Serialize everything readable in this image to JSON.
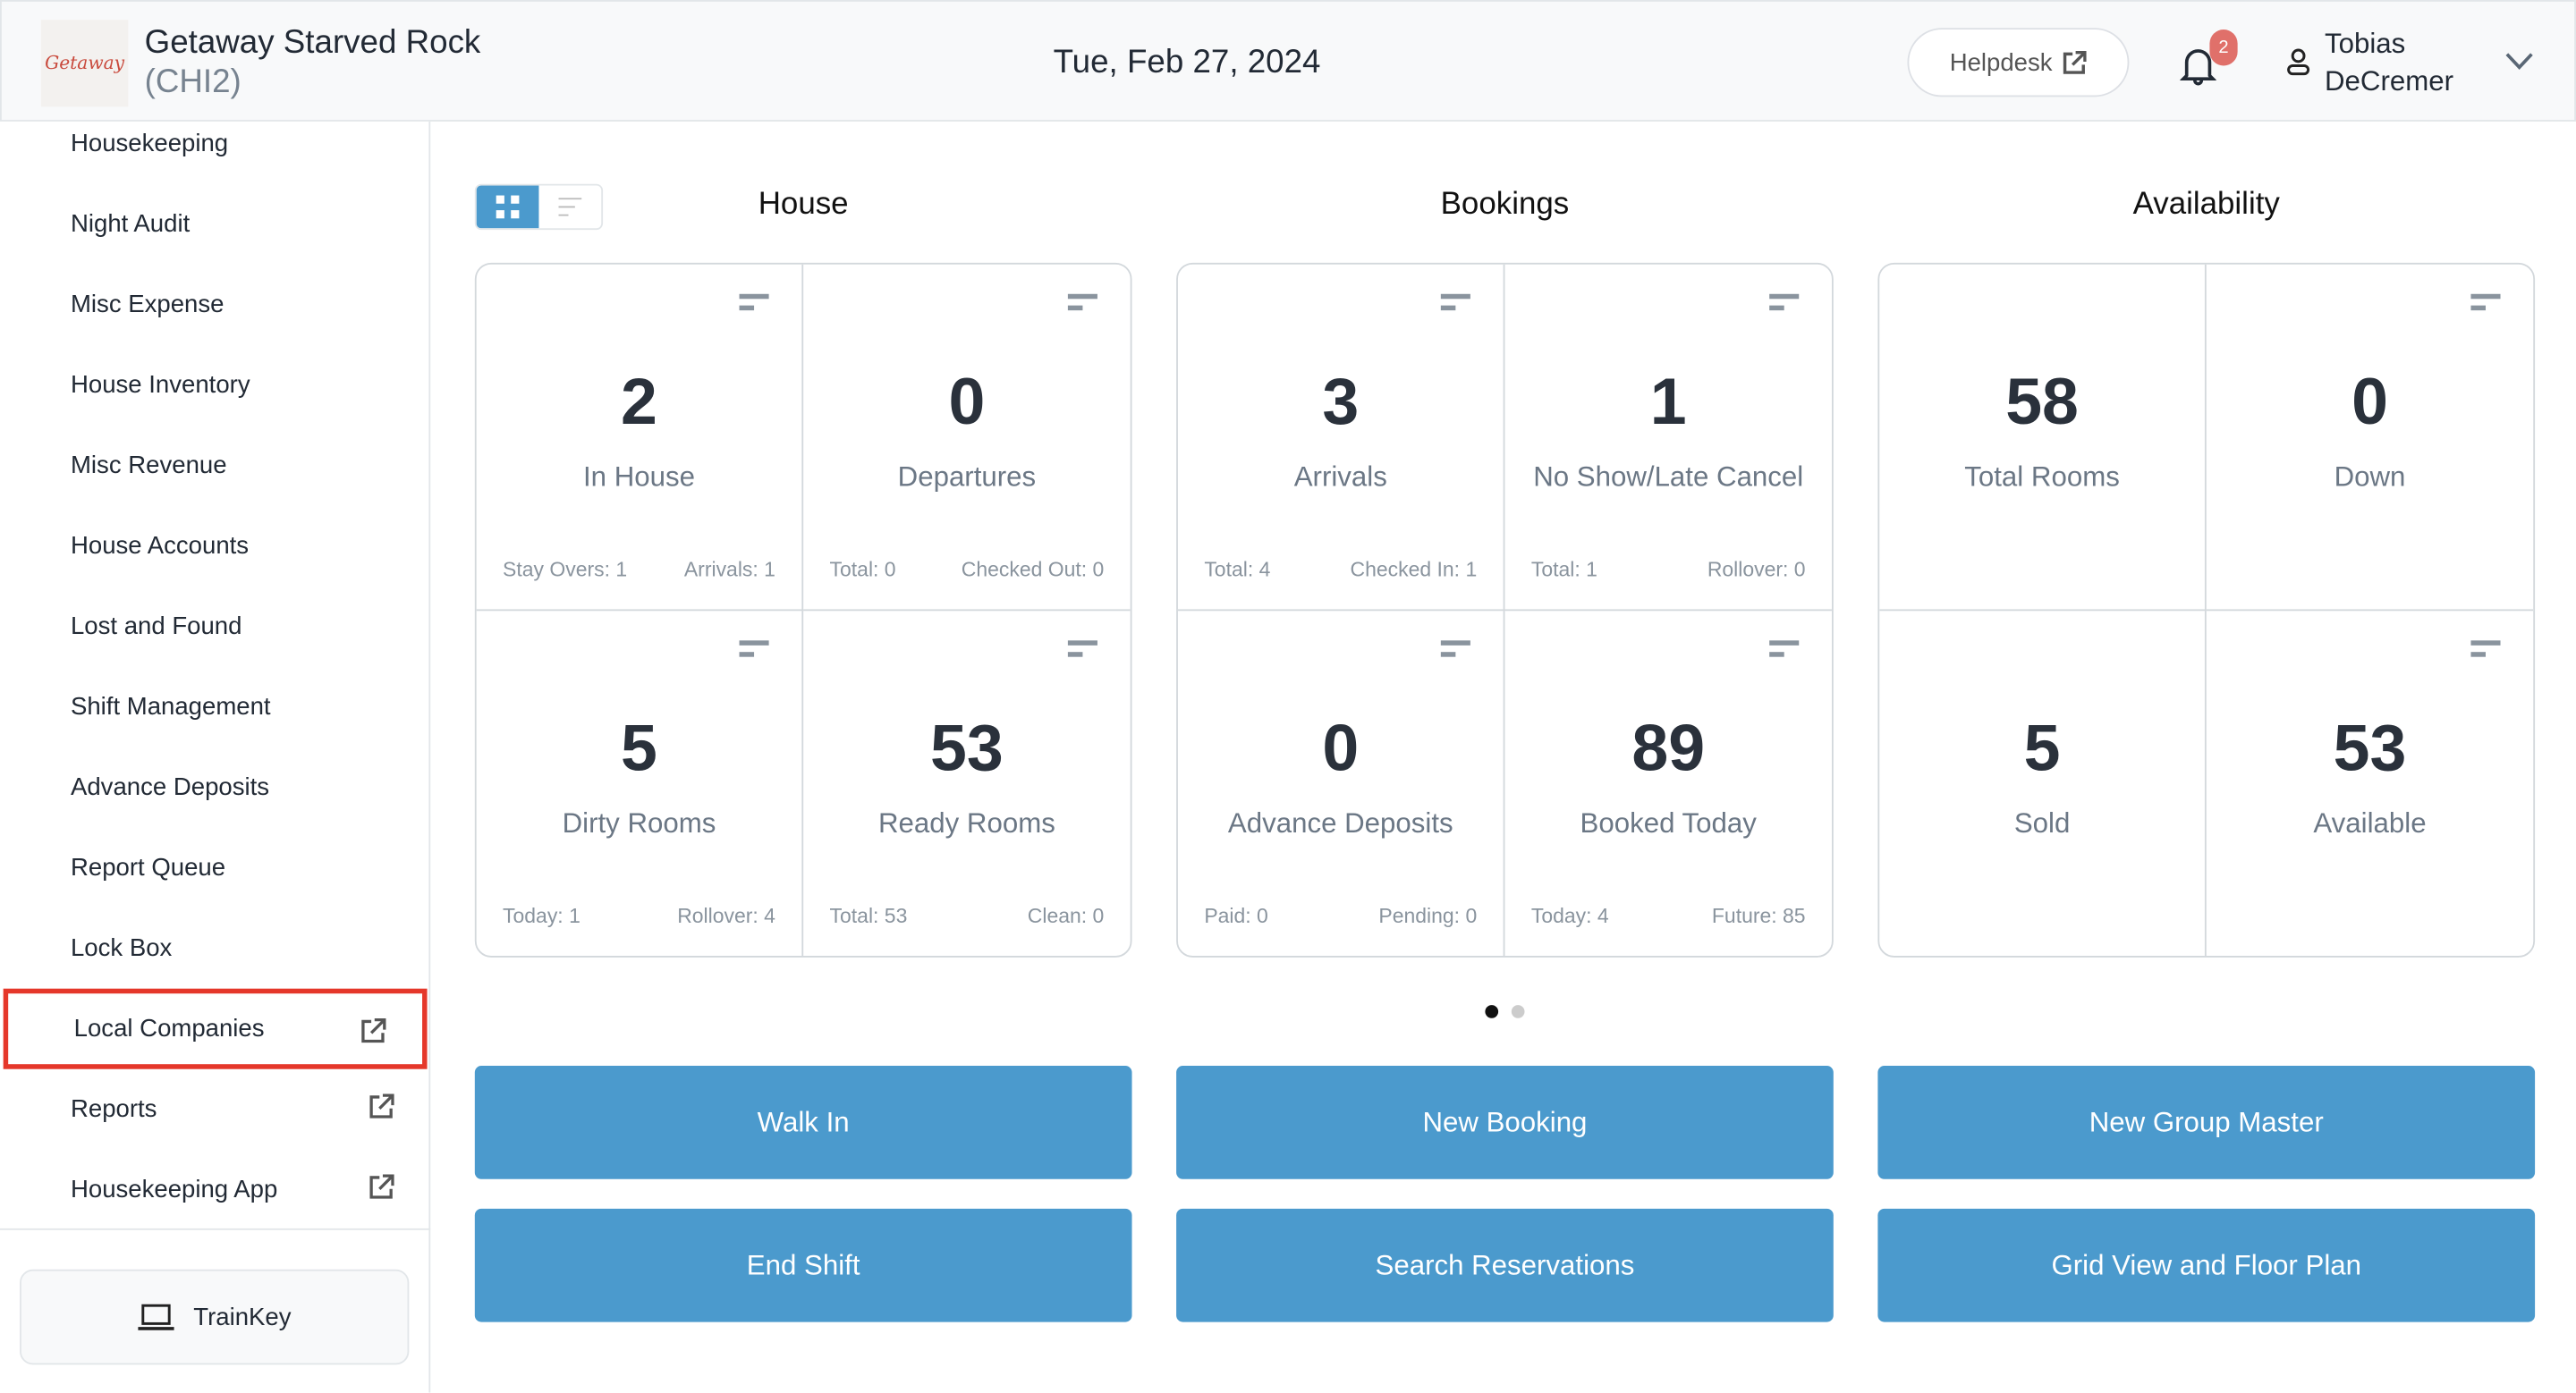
{
  "header": {
    "logo_text": "Getaway",
    "hotel_name": "Getaway Starved Rock",
    "hotel_code": "(CHI2)",
    "date": "Tue, Feb 27, 2024",
    "helpdesk": "Helpdesk",
    "notifications": "2",
    "user_first": "Tobias",
    "user_last": "DeCremer"
  },
  "sidebar": {
    "items": [
      {
        "label": "Housekeeping"
      },
      {
        "label": "Night Audit"
      },
      {
        "label": "Misc Expense"
      },
      {
        "label": "House Inventory"
      },
      {
        "label": "Misc Revenue"
      },
      {
        "label": "House Accounts"
      },
      {
        "label": "Lost and Found"
      },
      {
        "label": "Shift Management"
      },
      {
        "label": "Advance Deposits"
      },
      {
        "label": "Report Queue"
      },
      {
        "label": "Lock Box"
      },
      {
        "label": "Local Companies",
        "external": true,
        "highlighted": true
      },
      {
        "label": "Reports",
        "external": true
      },
      {
        "label": "Housekeeping App",
        "external": true
      }
    ],
    "trainkey": "TrainKey"
  },
  "colors": {
    "accent": "#4b9acd",
    "highlight": "#e5372a",
    "badge": "#e0706a"
  },
  "groups": [
    {
      "title": "House",
      "cells": [
        {
          "value": "2",
          "label": "In House",
          "left": "Stay Overs: 1",
          "right": "Arrivals: 1",
          "filter": true
        },
        {
          "value": "0",
          "label": "Departures",
          "left": "Total: 0",
          "right": "Checked Out: 0",
          "filter": true
        },
        {
          "value": "5",
          "label": "Dirty Rooms",
          "left": "Today: 1",
          "right": "Rollover: 4",
          "filter": true
        },
        {
          "value": "53",
          "label": "Ready Rooms",
          "left": "Total: 53",
          "right": "Clean: 0",
          "filter": true
        }
      ]
    },
    {
      "title": "Bookings",
      "cells": [
        {
          "value": "3",
          "label": "Arrivals",
          "left": "Total: 4",
          "right": "Checked In: 1",
          "filter": true
        },
        {
          "value": "1",
          "label": "No Show/Late Cancel",
          "left": "Total: 1",
          "right": "Rollover: 0",
          "filter": true
        },
        {
          "value": "0",
          "label": "Advance Deposits",
          "left": "Paid: 0",
          "right": "Pending: 0",
          "filter": true
        },
        {
          "value": "89",
          "label": "Booked Today",
          "left": "Today: 4",
          "right": "Future: 85",
          "filter": true
        }
      ]
    },
    {
      "title": "Availability",
      "cells": [
        {
          "value": "58",
          "label": "Total Rooms",
          "filter": false
        },
        {
          "value": "0",
          "label": "Down",
          "filter": true
        },
        {
          "value": "5",
          "label": "Sold",
          "filter": false
        },
        {
          "value": "53",
          "label": "Available",
          "filter": true
        }
      ]
    }
  ],
  "pagination": {
    "pages": 2,
    "current": 1
  },
  "actions": [
    "Walk In",
    "New Booking",
    "New Group Master",
    "End Shift",
    "Search Reservations",
    "Grid View and Floor Plan"
  ]
}
